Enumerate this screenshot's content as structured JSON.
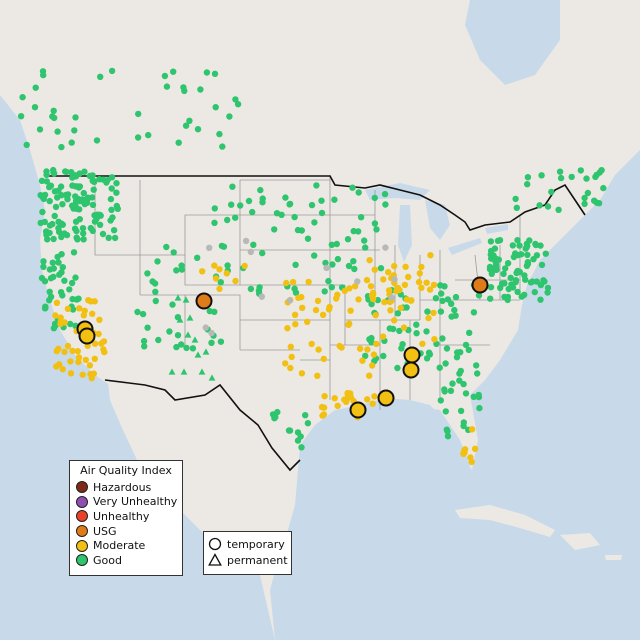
{
  "legend_aqi": {
    "title": "Air Quality Index",
    "items": [
      {
        "label": "Hazardous",
        "color": "#7e2a16"
      },
      {
        "label": "Very Unhealthy",
        "color": "#8f4fb1"
      },
      {
        "label": "Unhealthy",
        "color": "#e8432a"
      },
      {
        "label": "USG",
        "color": "#e07b1a"
      },
      {
        "label": "Moderate",
        "color": "#f2c012"
      },
      {
        "label": "Good",
        "color": "#2fc46e"
      }
    ]
  },
  "legend_monitor_type": {
    "items": [
      {
        "label": "temporary",
        "icon": "circle-icon"
      },
      {
        "label": "permanent",
        "icon": "triangle-icon"
      }
    ]
  },
  "colors": {
    "water": "#c8daea",
    "land": "#ece9e4",
    "border": "#111111",
    "state_line": "#9a9a9a",
    "unmonitored": "#b8b8b8"
  }
}
